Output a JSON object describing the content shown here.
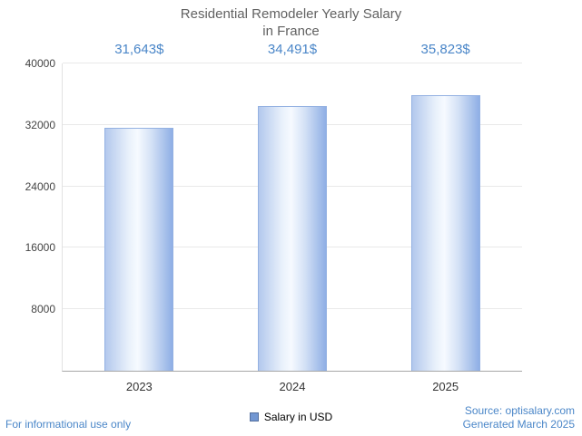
{
  "title": {
    "line1": "Residential Remodeler Yearly Salary",
    "line2": "in France"
  },
  "chart_data": {
    "type": "bar",
    "title": "Residential Remodeler Yearly Salary in France",
    "categories": [
      "2023",
      "2024",
      "2025"
    ],
    "values": [
      31643,
      34491,
      35823
    ],
    "value_labels": [
      "31,643$",
      "34,491$",
      "35,823$"
    ],
    "xlabel": "",
    "ylabel": "",
    "ylim": [
      0,
      40000
    ],
    "yticks": [
      8000,
      16000,
      24000,
      32000,
      40000
    ],
    "grid": true,
    "legend_position": "bottom",
    "legend": [
      {
        "label": "Salary in USD",
        "color": "#7297d2"
      }
    ]
  },
  "footer": {
    "left": "For informational use only",
    "source": "Source: optisalary.com",
    "generated": "Generated March 2025"
  },
  "colors": {
    "accent_text": "#4a86c8",
    "title_text": "#616161",
    "bar_edge": "#94b1e2",
    "bar_fill_light": "#f6faff",
    "bar_fill_dark": "#8fafe5",
    "gridline": "#e9e9e9",
    "axis_line": "#a6a6a6"
  }
}
